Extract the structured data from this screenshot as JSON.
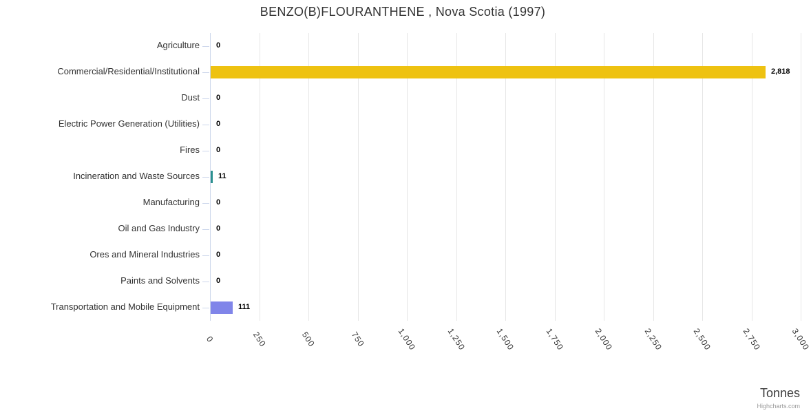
{
  "title": "BENZO(B)FLOURANTHENE , Nova Scotia (1997)",
  "axis": {
    "title": "Tonnes"
  },
  "credits": {
    "label": "Highcharts.com"
  },
  "colors": {
    "grid": "#e6e6e6",
    "axis_line": "#ccd6eb",
    "title_text": "#333333",
    "category_text": "#333333",
    "data_label_text": "#000000",
    "credits_text": "#999999"
  },
  "chart_data": {
    "type": "bar",
    "orientation": "horizontal",
    "title": "BENZO(B)FLOURANTHENE , Nova Scotia (1997)",
    "categories": [
      "Agriculture",
      "Commercial/Residential/Institutional",
      "Dust",
      "Electric Power Generation (Utilities)",
      "Fires",
      "Incineration and Waste Sources",
      "Manufacturing",
      "Oil and Gas Industry",
      "Ores and Mineral Industries",
      "Paints and Solvents",
      "Transportation and Mobile Equipment"
    ],
    "values": [
      0,
      2818,
      0,
      0,
      0,
      11,
      0,
      0,
      0,
      0,
      111
    ],
    "value_labels": [
      "0",
      "2,818",
      "0",
      "0",
      "0",
      "11",
      "0",
      "0",
      "0",
      "0",
      "111"
    ],
    "bar_colors": [
      null,
      "#eec211",
      null,
      null,
      null,
      "#2b908f",
      null,
      null,
      null,
      null,
      "#8085e9"
    ],
    "xlabel": "Tonnes",
    "ylabel": "",
    "xlim": [
      0,
      3000
    ],
    "x_ticks": [
      0,
      250,
      500,
      750,
      1000,
      1250,
      1500,
      1750,
      2000,
      2250,
      2500,
      2750,
      3000
    ],
    "x_tick_labels": [
      "0",
      "250",
      "500",
      "750",
      "1,000",
      "1,250",
      "1,500",
      "1,750",
      "2,000",
      "2,250",
      "2,500",
      "2,750",
      "3,000"
    ],
    "grid": true,
    "legend": "none"
  }
}
